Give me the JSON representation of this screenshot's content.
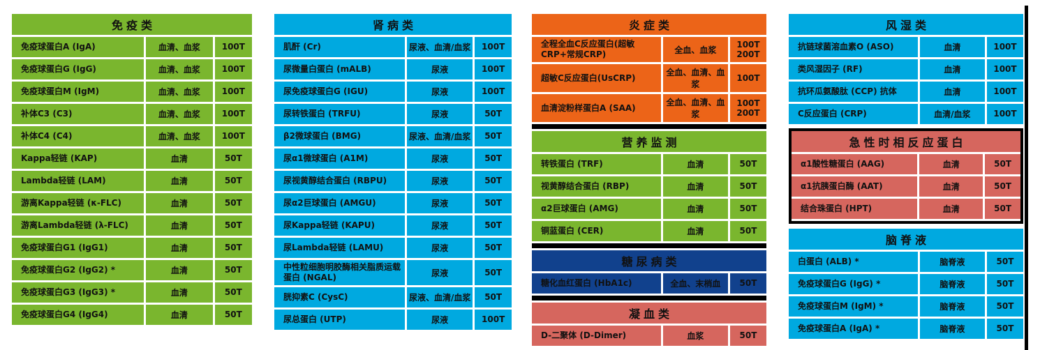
{
  "palette": {
    "green": "#7ab62e",
    "cyan": "#00a9e0",
    "orange": "#ec6418",
    "navy": "#11418d",
    "salmon": "#d6665e",
    "divider_black": "#000000",
    "text": "#111111",
    "page_background": "#ffffff"
  },
  "sections": {
    "immunity": {
      "title": "免疫类",
      "color": "#7ab62e",
      "rows": [
        {
          "name": "免疫球蛋白A (IgA)",
          "sample": "血清、血浆",
          "tests": "100T"
        },
        {
          "name": "免疫球蛋白G (IgG)",
          "sample": "血清、血浆",
          "tests": "100T"
        },
        {
          "name": "免疫球蛋白M (IgM)",
          "sample": "血清、血浆",
          "tests": "100T"
        },
        {
          "name": "补体C3 (C3)",
          "sample": "血清、血浆",
          "tests": "100T"
        },
        {
          "name": "补体C4 (C4)",
          "sample": "血清、血浆",
          "tests": "100T"
        },
        {
          "name": "Kappa轻链 (KAP)",
          "sample": "血清",
          "tests": "50T"
        },
        {
          "name": "Lambda轻链 (LAM)",
          "sample": "血清",
          "tests": "50T"
        },
        {
          "name": "游离Kappa轻链 (κ-FLC)",
          "sample": "血清",
          "tests": "50T"
        },
        {
          "name": "游离Lambda轻链 (λ-FLC)",
          "sample": "血清",
          "tests": "50T"
        },
        {
          "name": "免疫球蛋白G1 (IgG1)",
          "sample": "血清",
          "tests": "50T"
        },
        {
          "name": "免疫球蛋白G2 (IgG2) *",
          "sample": "血清",
          "tests": "50T"
        },
        {
          "name": "免疫球蛋白G3 (IgG3) *",
          "sample": "血清",
          "tests": "50T"
        },
        {
          "name": "免疫球蛋白G4 (IgG4)",
          "sample": "血清",
          "tests": "50T"
        }
      ]
    },
    "kidney": {
      "title": "肾病类",
      "color": "#00a9e0",
      "rows": [
        {
          "name": "肌酐 (Cr)",
          "sample": "尿液、血清/血浆",
          "tests": "100T"
        },
        {
          "name": "尿微量白蛋白 (mALB)",
          "sample": "尿液",
          "tests": "100T"
        },
        {
          "name": "尿免疫球蛋白G (IGU)",
          "sample": "尿液",
          "tests": "100T"
        },
        {
          "name": "尿转铁蛋白 (TRFU)",
          "sample": "尿液",
          "tests": "50T"
        },
        {
          "name": "β2微球蛋白 (BMG)",
          "sample": "尿液、血清/血浆",
          "tests": "50T"
        },
        {
          "name": "尿α1微球蛋白 (A1M)",
          "sample": "尿液",
          "tests": "50T"
        },
        {
          "name": "尿视黄醇结合蛋白 (RBPU)",
          "sample": "尿液",
          "tests": "50T"
        },
        {
          "name": "尿α2巨球蛋白 (AMGU)",
          "sample": "尿液",
          "tests": "50T"
        },
        {
          "name": "尿Kappa轻链 (KAPU)",
          "sample": "尿液",
          "tests": "50T"
        },
        {
          "name": "尿Lambda轻链 (LAMU)",
          "sample": "尿液",
          "tests": "50T"
        },
        {
          "name": "中性粒细胞明胶酶相关脂质运载蛋白 (NGAL)",
          "sample": "尿液",
          "tests": "50T"
        },
        {
          "name": "胱抑素C (CysC)",
          "sample": "尿液、血清/血浆",
          "tests": "50T"
        },
        {
          "name": "尿总蛋白 (UTP)",
          "sample": "尿液",
          "tests": "100T"
        }
      ]
    },
    "inflammation": {
      "title": "炎症类",
      "color": "#ec6418",
      "rows": [
        {
          "name": "全程全血C反应蛋白(超敏CRP+常规CRP)",
          "sample": "全血、血浆",
          "tests": "100T\n200T"
        },
        {
          "name": "超敏C反应蛋白(UsCRP)",
          "sample": "全血、血清、血浆",
          "tests": "100T"
        },
        {
          "name": "血清淀粉样蛋白A (SAA)",
          "sample": "全血、血清、血浆",
          "tests": "100T\n200T"
        }
      ]
    },
    "nutrition": {
      "title": "营养监测",
      "color": "#7ab62e",
      "rows": [
        {
          "name": "转铁蛋白 (TRF)",
          "sample": "血清",
          "tests": "50T"
        },
        {
          "name": "视黄醇结合蛋白 (RBP)",
          "sample": "血清",
          "tests": "50T"
        },
        {
          "name": "α2巨球蛋白 (AMG)",
          "sample": "血清",
          "tests": "50T"
        },
        {
          "name": "铜蓝蛋白 (CER)",
          "sample": "血清",
          "tests": "50T"
        }
      ]
    },
    "diabetes": {
      "title": "糖尿病类",
      "color": "#11418d",
      "rows": [
        {
          "name": "糖化血红蛋白 (HbA1c)",
          "sample": "全血、末梢血",
          "tests": "50T"
        }
      ]
    },
    "coagulation": {
      "title": "凝血类",
      "color": "#d6665e",
      "rows": [
        {
          "name": "D-二聚体 (D-Dimer)",
          "sample": "血浆",
          "tests": "50T"
        }
      ]
    },
    "rheumatism": {
      "title": "风湿类",
      "color": "#00a9e0",
      "rows": [
        {
          "name": "抗链球菌溶血素O (ASO)",
          "sample": "血清",
          "tests": "100T"
        },
        {
          "name": "类风湿因子 (RF)",
          "sample": "血清",
          "tests": "100T"
        },
        {
          "name": "抗环瓜氨酸肽 (CCP) 抗体",
          "sample": "血清",
          "tests": "100T"
        },
        {
          "name": "C反应蛋白 (CRP)",
          "sample": "血清/血浆",
          "tests": "100T"
        }
      ]
    },
    "acute_phase": {
      "title": "急性时相反应蛋白",
      "color": "#d6665e",
      "rows": [
        {
          "name": "α1酸性糖蛋白 (AAG)",
          "sample": "血清",
          "tests": "50T"
        },
        {
          "name": "α1抗胰蛋白酶 (AAT)",
          "sample": "血清",
          "tests": "50T"
        },
        {
          "name": "结合珠蛋白 (HPT)",
          "sample": "血清",
          "tests": "50T"
        }
      ]
    },
    "csf": {
      "title": "脑脊液",
      "color": "#00a9e0",
      "rows": [
        {
          "name": "白蛋白 (ALB) *",
          "sample": "脑脊液",
          "tests": "50T"
        },
        {
          "name": "免疫球蛋白G (IgG) *",
          "sample": "脑脊液",
          "tests": "50T"
        },
        {
          "name": "免疫球蛋白M (IgM) *",
          "sample": "脑脊液",
          "tests": "50T"
        },
        {
          "name": "免疫球蛋白A (IgA) *",
          "sample": "脑脊液",
          "tests": "50T"
        }
      ]
    }
  }
}
